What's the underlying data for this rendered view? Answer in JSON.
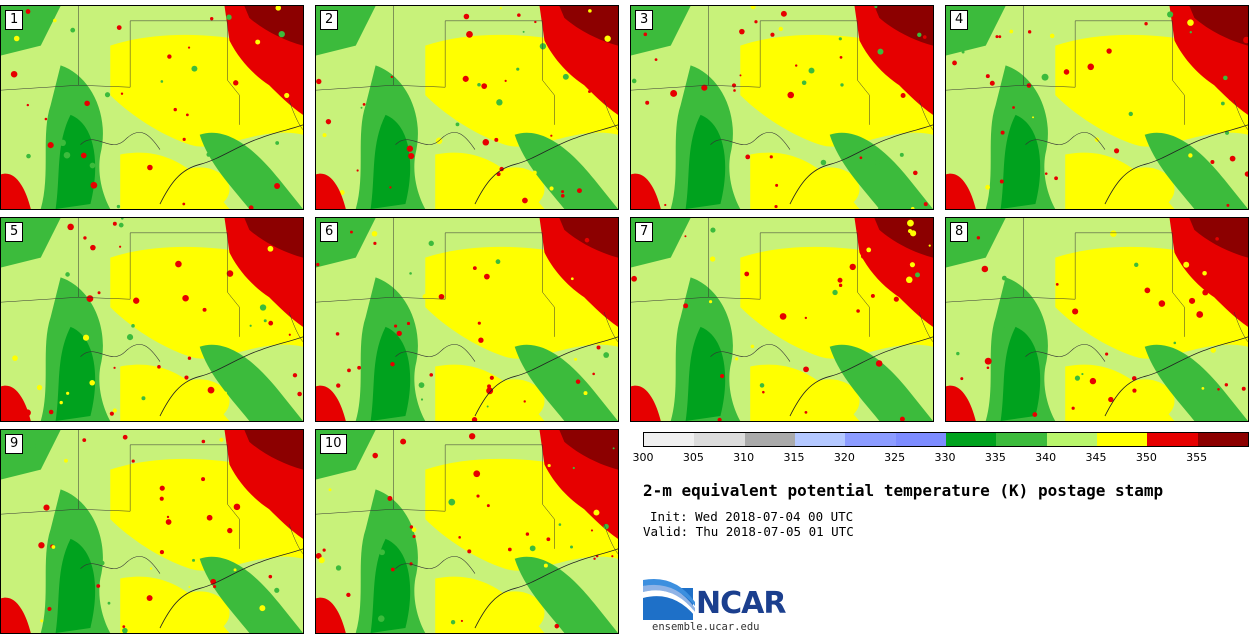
{
  "panels": [
    {
      "label": "1"
    },
    {
      "label": "2"
    },
    {
      "label": "3"
    },
    {
      "label": "4"
    },
    {
      "label": "5"
    },
    {
      "label": "6"
    },
    {
      "label": "7"
    },
    {
      "label": "8"
    },
    {
      "label": "9"
    },
    {
      "label": "10"
    }
  ],
  "colorbar": {
    "colors": [
      "#f0f0f0",
      "#dcdcdc",
      "#aaaaaa",
      "#b4c8ff",
      "#8c9cff",
      "#7d8cff",
      "#00a21e",
      "#3cbb3c",
      "#b9f56c",
      "#ffff00",
      "#e60000",
      "#8c0000"
    ],
    "ticks": [
      "300",
      "305",
      "310",
      "315",
      "320",
      "325",
      "330",
      "335",
      "340",
      "345",
      "350",
      "355"
    ]
  },
  "map_colors": {
    "green_dark": "#00a21e",
    "green_mid": "#3cbb3c",
    "green_light": "#b9f56c",
    "yellow": "#ffff00",
    "red": "#e60000",
    "red_dark": "#8c0000"
  },
  "title": "2-m equivalent potential temperature (K) postage stamp",
  "init": "Init: Wed 2018-07-04 00 UTC",
  "valid": "Valid: Thu 2018-07-05 01 UTC",
  "logo": {
    "text": "NCAR",
    "url": "ensemble.ucar.edu"
  }
}
